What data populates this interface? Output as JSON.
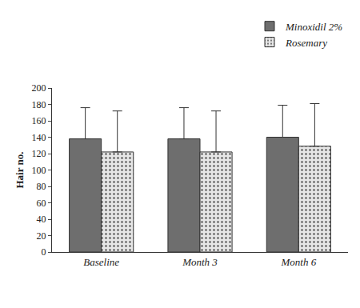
{
  "chart_data": {
    "type": "bar",
    "categories": [
      "Baseline",
      "Month 3",
      "Month 6"
    ],
    "series": [
      {
        "name": "Minoxidil 2%",
        "color": "#6e6e6e",
        "values": [
          138,
          138,
          140
        ],
        "errors": [
          38,
          38,
          39
        ]
      },
      {
        "name": "Rosemary",
        "color": "#e6e6e6",
        "marker": "dots",
        "values": [
          122,
          122,
          129
        ],
        "errors": [
          50,
          50,
          52
        ]
      }
    ],
    "y_label": "Hair no.",
    "ylim": [
      0,
      200
    ],
    "yticks": [
      0,
      20,
      40,
      60,
      80,
      100,
      120,
      140,
      160,
      180,
      200
    ],
    "grid": false,
    "legend": "top right"
  }
}
